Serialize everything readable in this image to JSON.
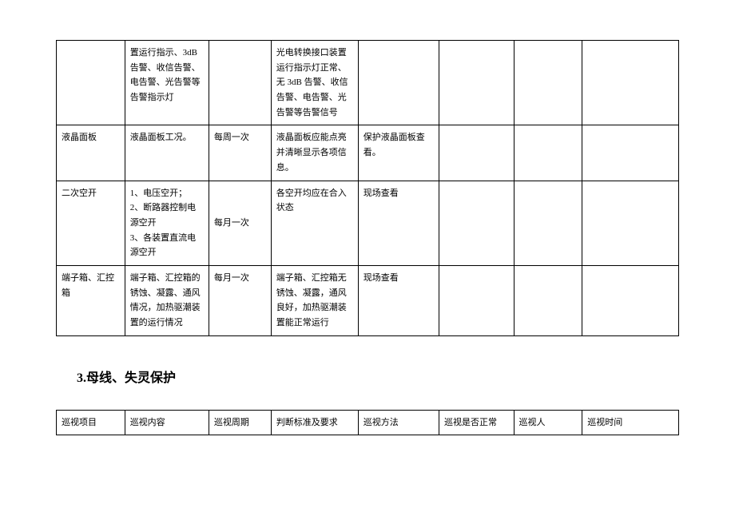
{
  "table1": {
    "columns": 8,
    "rows": [
      {
        "cells": [
          "",
          "置运行指示、3dB告警、收信告警、电告警、光告警等告警指示灯",
          "",
          "光电转换接口装置运行指示灯正常、无 3dB 告警、收信告警、电告警、光告警等告警信号",
          "",
          "",
          "",
          ""
        ],
        "height": 9
      },
      {
        "cells": [
          "液晶面板",
          "液晶面板工况。",
          "每周一次",
          "液晶面板应能点亮并清晰显示各项信息。",
          "保护液晶面板查看。",
          "",
          "",
          ""
        ],
        "height": 3
      },
      {
        "cells": [
          "二次空开",
          "1、电压空开；\n2、断路器控制电源空开\n3、各装置直流电源空开",
          "每月一次",
          "各空开均应在合入状态",
          "现场查看",
          "",
          "",
          ""
        ],
        "height": 5,
        "cell2_valign": "middle"
      },
      {
        "cells": [
          "端子箱、汇控箱",
          "端子箱、汇控箱的锈蚀、凝露、通风情况，加热驱潮装置的运行情况",
          "每月一次",
          "端子箱、汇控箱无锈蚀、凝露，通风良好，加热驱潮装置能正常运行",
          "现场查看",
          "",
          "",
          ""
        ],
        "height": 4
      }
    ]
  },
  "section_heading": "3.母线、失灵保护",
  "table2": {
    "columns": 8,
    "headers": [
      "巡视项目",
      "巡视内容",
      "巡视周期",
      "判断标准及要求",
      "巡视方法",
      "巡视是否正常",
      "巡视人",
      "巡视时间"
    ]
  },
  "colors": {
    "border": "#000000",
    "background": "#ffffff",
    "text": "#000000"
  }
}
